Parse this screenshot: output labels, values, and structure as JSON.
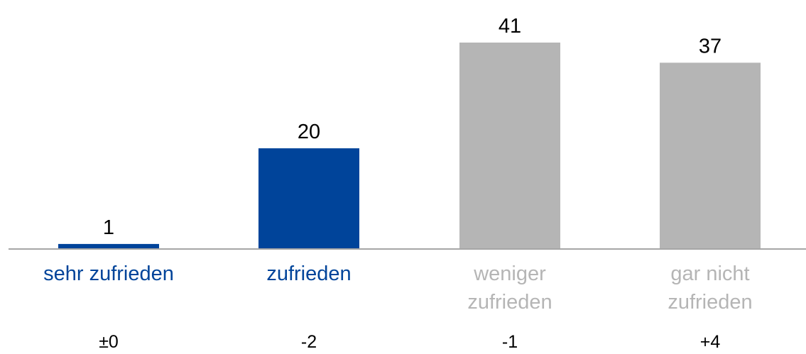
{
  "chart_data": {
    "type": "bar",
    "categories": [
      "sehr zufrieden",
      "zufrieden",
      "weniger zufrieden",
      "gar nicht zufrieden"
    ],
    "values": [
      1,
      20,
      41,
      37
    ],
    "colors": [
      "#00449a",
      "#00449a",
      "#b5b5b5",
      "#b5b5b5"
    ],
    "changes": [
      "±0",
      "-2",
      "-1",
      "+4"
    ]
  }
}
